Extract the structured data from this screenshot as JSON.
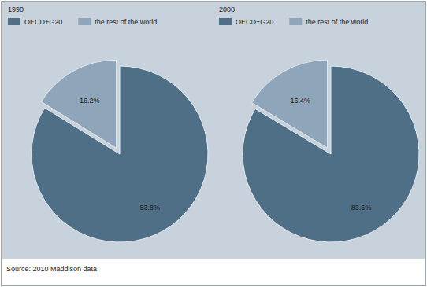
{
  "chart_data": [
    {
      "type": "pie",
      "title": "1990",
      "categories": [
        "OECD+G20",
        "the rest of the world"
      ],
      "values": [
        83.8,
        16.2
      ],
      "value_labels": [
        "83.8%",
        "16.2%"
      ],
      "colors": [
        "#4f6f87",
        "#8ea5ba"
      ],
      "data_labels": true,
      "legend": "top"
    },
    {
      "type": "pie",
      "title": "2008",
      "categories": [
        "OECD+G20",
        "the rest of the world"
      ],
      "values": [
        83.6,
        16.4
      ],
      "value_labels": [
        "83.6%",
        "16.4%"
      ],
      "colors": [
        "#4f6f87",
        "#8ea5ba"
      ],
      "data_labels": true,
      "legend": "top"
    }
  ],
  "source": "Source: 2010 Maddison data"
}
